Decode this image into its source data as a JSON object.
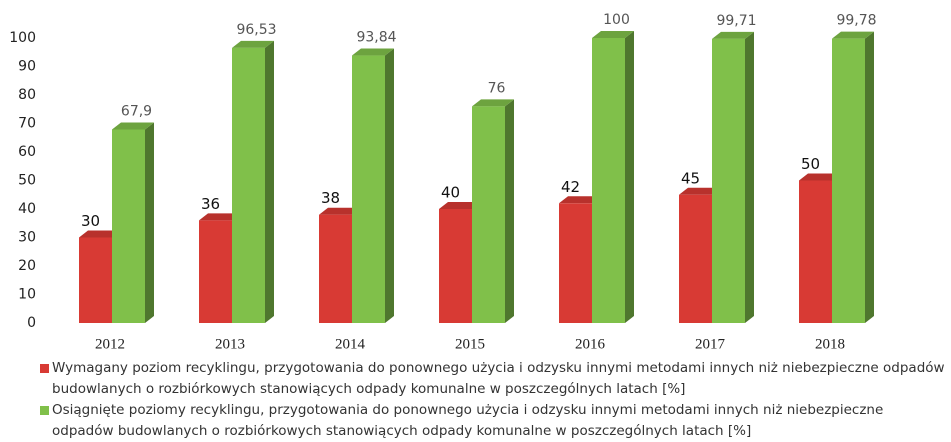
{
  "chart_data": {
    "type": "bar3d",
    "categories": [
      "2012",
      "2013",
      "2014",
      "2015",
      "2016",
      "2017",
      "2018"
    ],
    "series": [
      {
        "name": "Wymagany poziom recyklingu, przygotowania do ponownego użycia i odzysku innymi metodami innych niż niebezpieczne odpadów budowlanych o rozbiórkowych stanowiących odpady komunalne w poszczególnych latach [%]",
        "color": "#d83a34",
        "values": [
          30,
          36,
          38,
          40,
          42,
          45,
          50
        ]
      },
      {
        "name": "Osiągnięte poziomy recyklingu, przygotowania do ponownego użycia i odzysku innymi metodami innych niż niebezpieczne odpadów budowlanych o rozbiórkowych stanowiących odpady komunalne w poszczególnych latach [%]",
        "color": "#80c04a",
        "values": [
          67.9,
          96.53,
          93.84,
          76,
          100,
          99.71,
          99.78
        ],
        "value_labels": [
          "67,9",
          "96,53",
          "93,84",
          "76",
          "100",
          "99,71",
          "99,78"
        ]
      }
    ],
    "ylim": [
      0,
      100
    ],
    "yticks": [
      0,
      10,
      20,
      30,
      40,
      50,
      60,
      70,
      80,
      90,
      100
    ]
  }
}
